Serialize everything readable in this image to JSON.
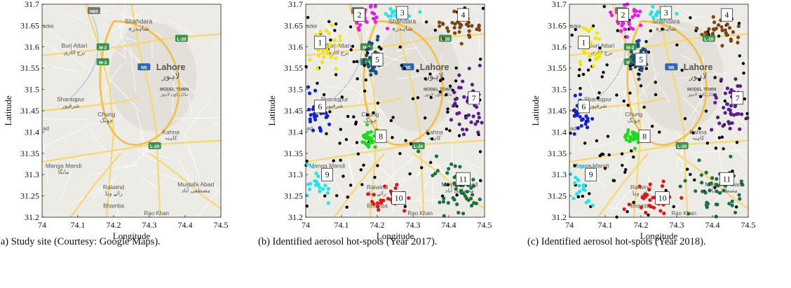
{
  "colors": {
    "map_land": "#ecebe6",
    "map_road_major": "#f6d77a",
    "map_road_minor": "#ffffff",
    "map_road_motorway": "#f4c04c",
    "map_urban": "#e2e0d8",
    "map_shield_green": "#3f8f4e",
    "map_shield_blue": "#2d66b1",
    "map_water": "#9ab6d6",
    "unclustered": "#000000",
    "c1": "#f2e600",
    "c2": "#e61ce6",
    "c3": "#22e4ec",
    "c4": "#7b4614",
    "c5": "#1f4f7c",
    "c6": "#1221d4",
    "c7": "#5a1d8c",
    "c8": "#1bdc1b",
    "c9": "#22e4ec",
    "c10": "#e01515",
    "c11": "#1c6e48"
  },
  "axes": {
    "xlim": [
      74,
      74.5
    ],
    "ylim": [
      31.2,
      31.7
    ],
    "xticks": [
      "74",
      "74.1",
      "74.2",
      "74.3",
      "74.4",
      "74.5"
    ],
    "yticks": [
      "31.2",
      "31.25",
      "31.3",
      "31.35",
      "31.4",
      "31.45",
      "31.5",
      "31.55",
      "31.6",
      "31.65",
      "31.7"
    ],
    "xlabel": "Longitude",
    "ylabel": "Latitude"
  },
  "map_labels": {
    "shahdara_en": "Shahdara",
    "shahdara_ur": "شاہدرہ",
    "burj_attari_en": "Burj Attari",
    "burj_attari_ur": "برج اٹاری",
    "lahore_en": "Lahore",
    "lahore_ur": "لاہور",
    "model_town_en": "MODEL TOWN",
    "model_town_ur": "ماڈل ٹاؤن لاہور",
    "sharaqpur_en": "Sharaqpur",
    "sharaqpur_ur": "شرقپور",
    "chung_en": "Chung",
    "chung_ur": "چونگ",
    "kahna_en": "Kahna",
    "kahna_ur": "کاہنہ",
    "manga_mandi_en": "Manga Mandi",
    "manga_mandi_ur": "مانگا",
    "raiwind_en": "Raiwind",
    "raiwind_ur": "رائے ونڈ",
    "mustafa_abad_en": "Mustafa Abad",
    "mustafa_abad_ur": "مصطفی آباد",
    "bhamba_en": "Bhamba",
    "rao_khan_en": "Rao Khan",
    "farke": "arke",
    "ad": "ad",
    "shield_n60": "N60",
    "shield_m2": "M-2",
    "shield_m3": "M-3",
    "shield_n5": "N5",
    "shield_l20": "L-20"
  },
  "panels": [
    {
      "id": "a",
      "caption": "(a) Study site (Courtesy: Google Maps).",
      "show_clusters": false
    },
    {
      "id": "b",
      "caption": "(b) Identified aerosol hot-spots (Year 2017).",
      "show_clusters": true,
      "year": "2017"
    },
    {
      "id": "c",
      "caption": "(c) Identified aerosol hot-spots (Year 2018).",
      "show_clusters": true,
      "year": "2018"
    }
  ],
  "clusters": [
    {
      "id": "1",
      "label": "1",
      "color_key": "c1",
      "center": [
        74.055,
        31.6
      ],
      "spread": [
        0.03,
        0.045
      ],
      "n": 28
    },
    {
      "id": "2",
      "label": "2",
      "color_key": "c2",
      "center": [
        74.165,
        31.67
      ],
      "spread": [
        0.035,
        0.03
      ],
      "n": 30
    },
    {
      "id": "3",
      "label": "3",
      "color_key": "c3",
      "center": [
        74.255,
        31.68
      ],
      "spread": [
        0.04,
        0.015
      ],
      "n": 18
    },
    {
      "id": "4",
      "label": "4",
      "color_key": "c4",
      "center": [
        74.43,
        31.645
      ],
      "spread": [
        0.055,
        0.03
      ],
      "n": 32
    },
    {
      "id": "5",
      "label": "5",
      "color_key": "c5",
      "center": [
        74.19,
        31.57
      ],
      "spread": [
        0.025,
        0.035
      ],
      "n": 34
    },
    {
      "id": "6",
      "label": "6",
      "color_key": "c6",
      "center": [
        74.03,
        31.445
      ],
      "spread": [
        0.03,
        0.035
      ],
      "n": 28
    },
    {
      "id": "7",
      "label": "7",
      "color_key": "c7",
      "center": [
        74.45,
        31.47
      ],
      "spread": [
        0.035,
        0.065
      ],
      "n": 40
    },
    {
      "id": "8",
      "label": "8",
      "color_key": "c8",
      "center": [
        74.18,
        31.385
      ],
      "spread": [
        0.02,
        0.02
      ],
      "n": 30
    },
    {
      "id": "9",
      "label": "9",
      "color_key": "c9",
      "center": [
        74.03,
        31.28
      ],
      "spread": [
        0.035,
        0.045
      ],
      "n": 22
    },
    {
      "id": "10",
      "label": "10",
      "color_key": "c10",
      "center": [
        74.23,
        31.24
      ],
      "spread": [
        0.06,
        0.03
      ],
      "n": 28
    },
    {
      "id": "11",
      "label": "11",
      "color_key": "c11",
      "center": [
        74.42,
        31.26
      ],
      "spread": [
        0.07,
        0.055
      ],
      "n": 48
    }
  ],
  "unclustered_count": 120
}
